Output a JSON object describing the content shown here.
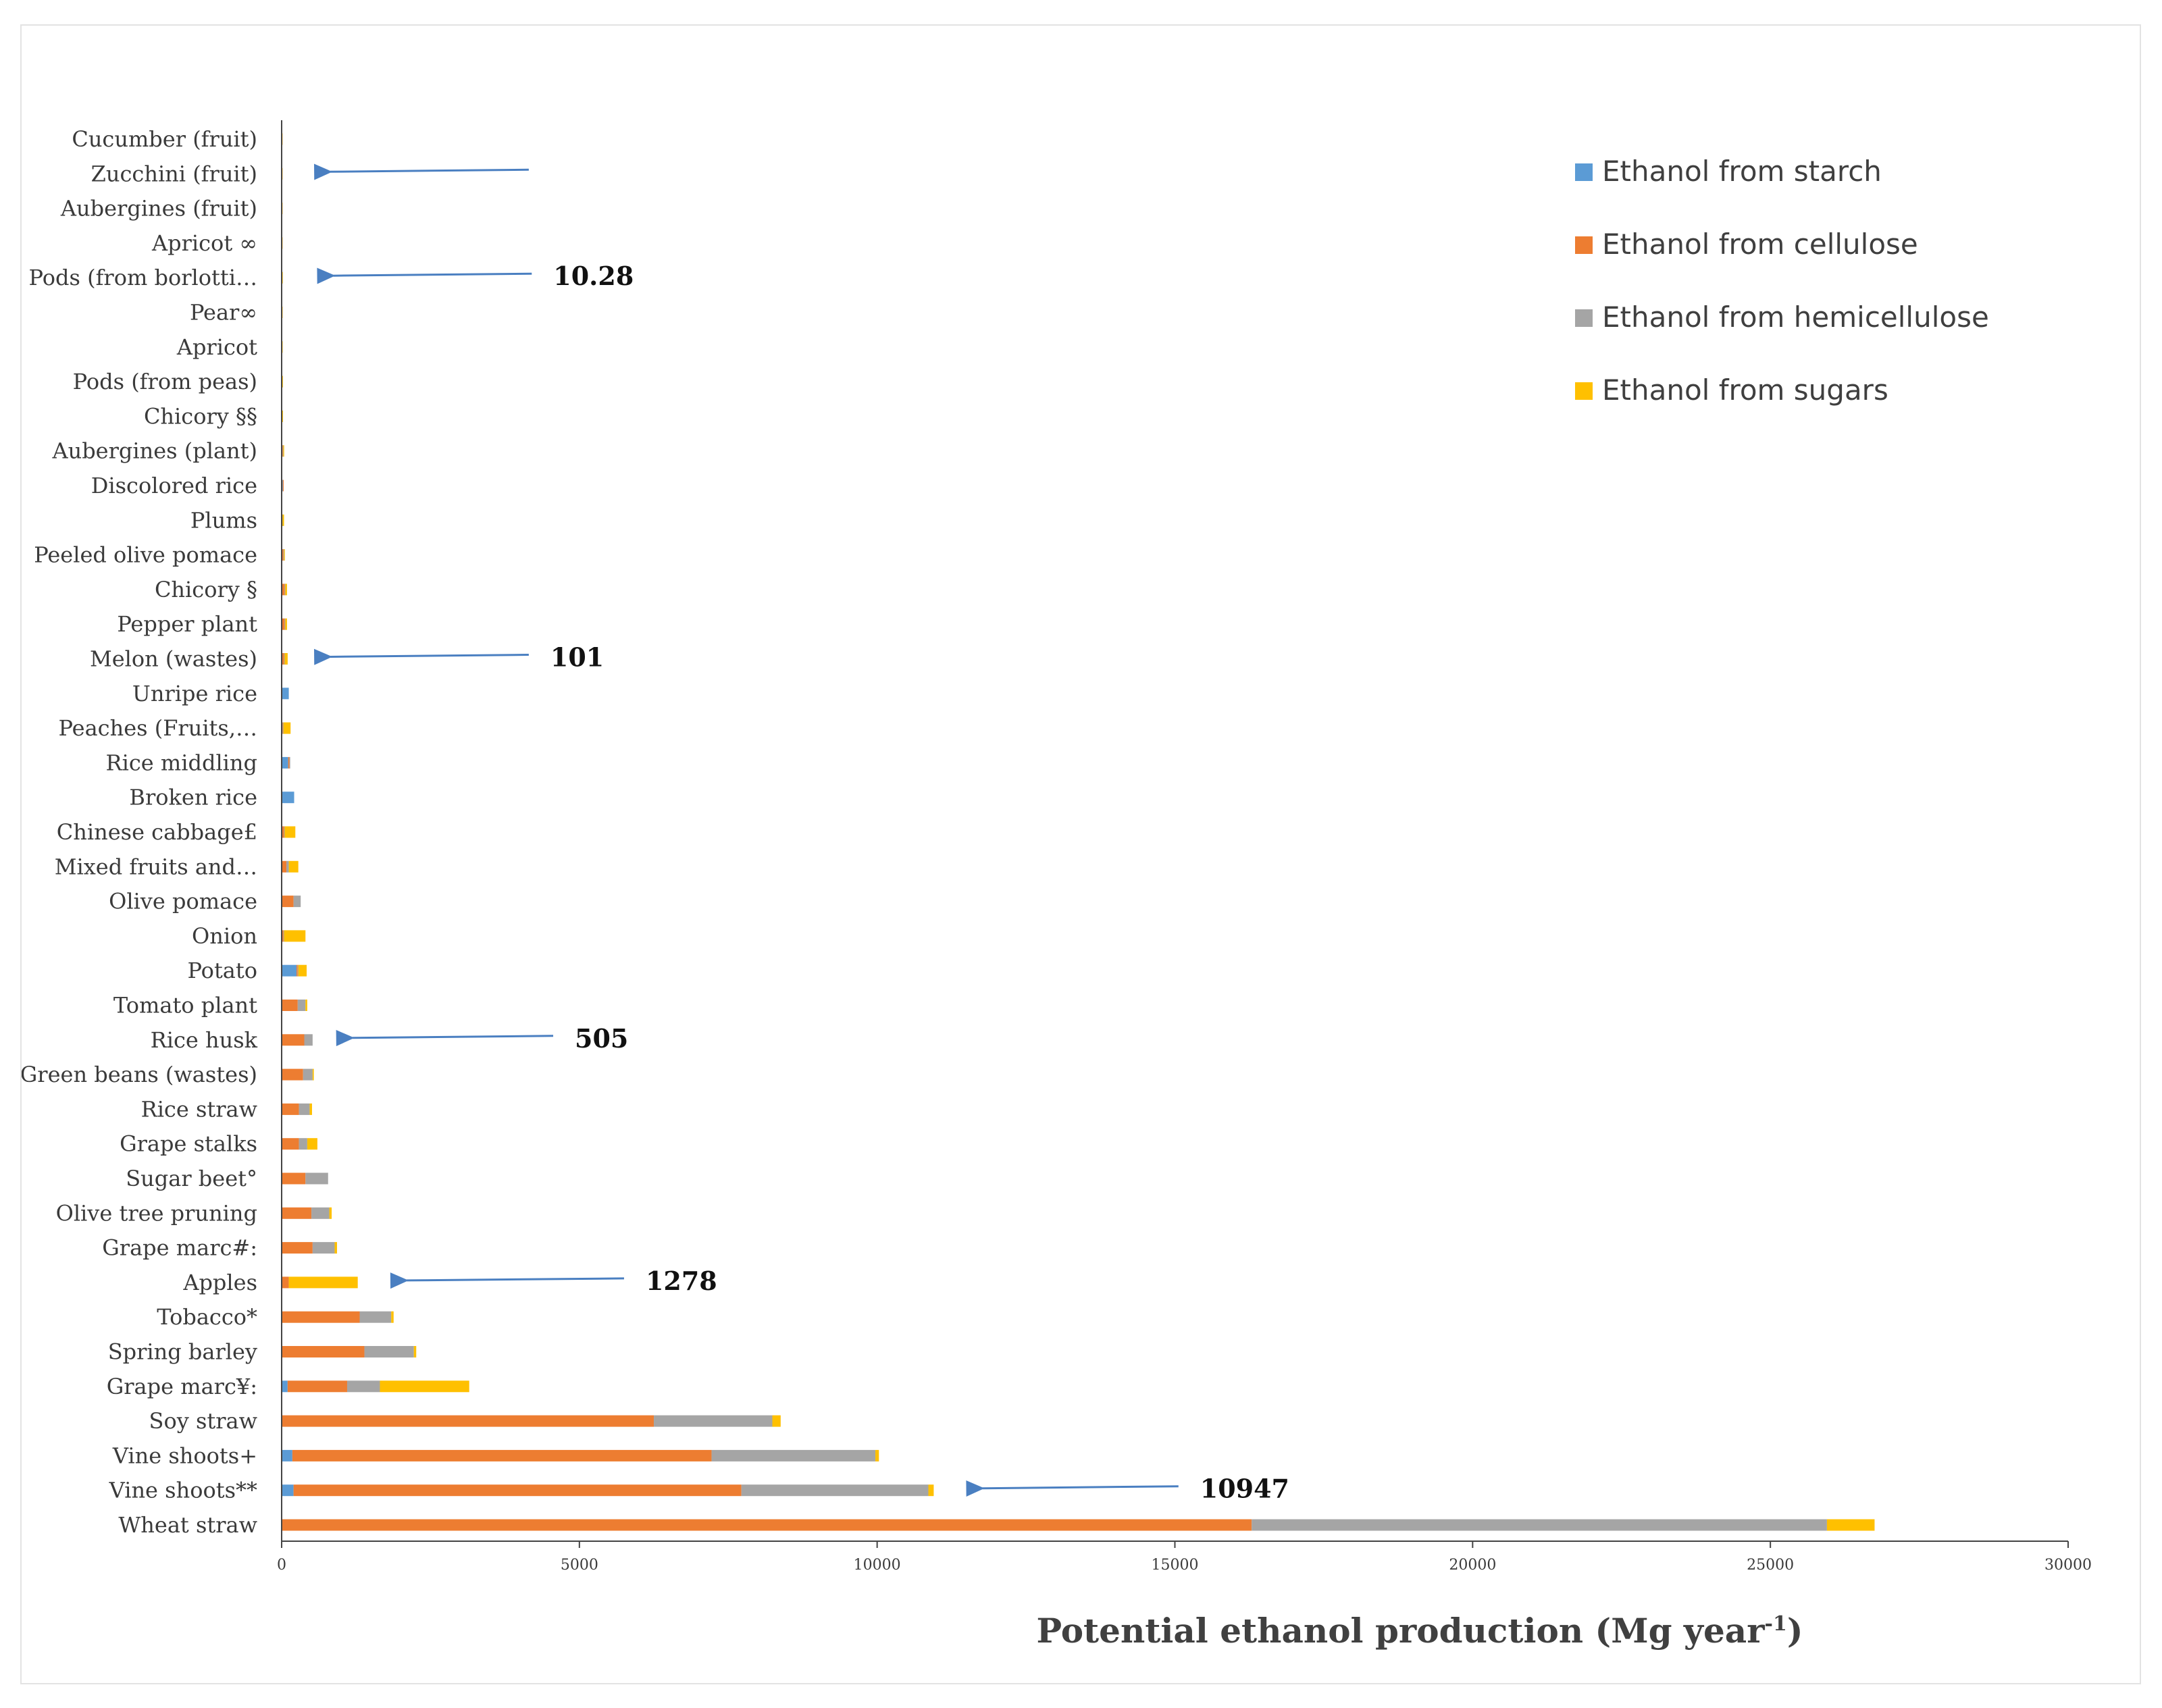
{
  "chart_data": {
    "type": "bar",
    "orientation": "horizontal",
    "stacked": true,
    "title": "",
    "xlabel": "Potential ethanol production (Mg year",
    "xlabel_superscript": "-1",
    "xlabel_close": ")",
    "ylabel": "",
    "xlim": [
      0,
      30000
    ],
    "xticks": [
      "0",
      "5000",
      "10000",
      "15000",
      "20000",
      "25000",
      "30000"
    ],
    "grid": false,
    "legend_position": "top-right",
    "categories": [
      "Cucumber (fruit)",
      "Zucchini (fruit)",
      "Aubergines (fruit)",
      "Apricot ∞",
      "Pods (from borlotti…",
      "Pear∞",
      "Apricot",
      "Pods (from peas)",
      "Chicory §§",
      "Aubergines (plant)",
      "Discolored rice",
      "Plums",
      "Peeled olive pomace",
      "Chicory §",
      "Pepper plant",
      "Melon (wastes)",
      "Unripe rice",
      "Peaches (Fruits,…",
      "Rice middling",
      "Broken rice",
      "Chinese cabbage£",
      "Mixed fruits and…",
      "Olive pomace",
      "Onion",
      "Potato",
      "Tomato plant",
      "Rice husk",
      "Green beans (wastes)",
      "Rice straw",
      "Grape stalks",
      "Sugar beet°",
      "Olive tree pruning",
      "Grape marc#:",
      "Apples",
      "Tobacco*",
      "Spring barley",
      "Grape marc¥:",
      "Soy straw",
      "Vine shoots+",
      "Vine shoots**",
      "Wheat straw"
    ],
    "series": [
      {
        "name": "Ethanol from starch",
        "color": "#5b9bd5",
        "values": [
          0,
          0,
          0,
          0,
          0,
          0,
          0,
          0,
          0,
          0,
          20,
          0,
          0,
          0,
          0,
          0,
          120,
          0,
          110,
          210,
          0,
          0,
          0,
          0,
          250,
          0,
          0,
          0,
          0,
          0,
          0,
          0,
          0,
          0,
          0,
          0,
          100,
          0,
          180,
          200,
          0
        ]
      },
      {
        "name": "Ethanol from cellulose",
        "color": "#ed7d31",
        "values": [
          1,
          1,
          1,
          1,
          3,
          2,
          3,
          5,
          6,
          20,
          10,
          10,
          30,
          50,
          50,
          40,
          0,
          20,
          20,
          0,
          40,
          80,
          200,
          30,
          20,
          270,
          380,
          360,
          290,
          290,
          400,
          500,
          520,
          120,
          1310,
          1390,
          1000,
          6250,
          7040,
          7520,
          16290
        ]
      },
      {
        "name": "Ethanol from hemicellulose",
        "color": "#a5a5a5",
        "values": [
          0,
          0,
          0,
          0,
          2,
          0,
          0,
          2,
          2,
          8,
          0,
          5,
          10,
          10,
          10,
          10,
          0,
          10,
          10,
          0,
          10,
          40,
          120,
          10,
          10,
          130,
          140,
          160,
          180,
          140,
          380,
          300,
          370,
          0,
          530,
          830,
          550,
          1990,
          2750,
          3140,
          9660
        ]
      },
      {
        "name": "Ethanol from sugars",
        "color": "#ffc000",
        "values": [
          1,
          1,
          1,
          1,
          5,
          3,
          3,
          3,
          5,
          10,
          0,
          25,
          10,
          30,
          30,
          51,
          0,
          120,
          0,
          0,
          180,
          160,
          0,
          360,
          140,
          30,
          0,
          20,
          40,
          170,
          0,
          40,
          40,
          1158,
          40,
          40,
          1500,
          140,
          60,
          90,
          800
        ]
      }
    ],
    "annotations": [
      {
        "text": "10.28",
        "category": "Pods (from borlotti…",
        "arrow_to_x": 800,
        "arrow_from_x": 4200
      },
      {
        "text": "101",
        "category": "Melon (wastes)",
        "arrow_to_x": 750,
        "arrow_from_x": 4150
      },
      {
        "text": "505",
        "category": "Rice husk",
        "arrow_to_x": 1120,
        "arrow_from_x": 4560
      },
      {
        "text": "1278",
        "category": "Apples",
        "arrow_to_x": 2030,
        "arrow_from_x": 5750
      },
      {
        "text": "10947",
        "category": "Vine shoots**",
        "arrow_to_x": 11700,
        "arrow_from_x": 15060
      },
      {
        "text": "",
        "category": "Zucchini (fruit)",
        "arrow_to_x": 750,
        "arrow_from_x": 4150
      }
    ]
  }
}
